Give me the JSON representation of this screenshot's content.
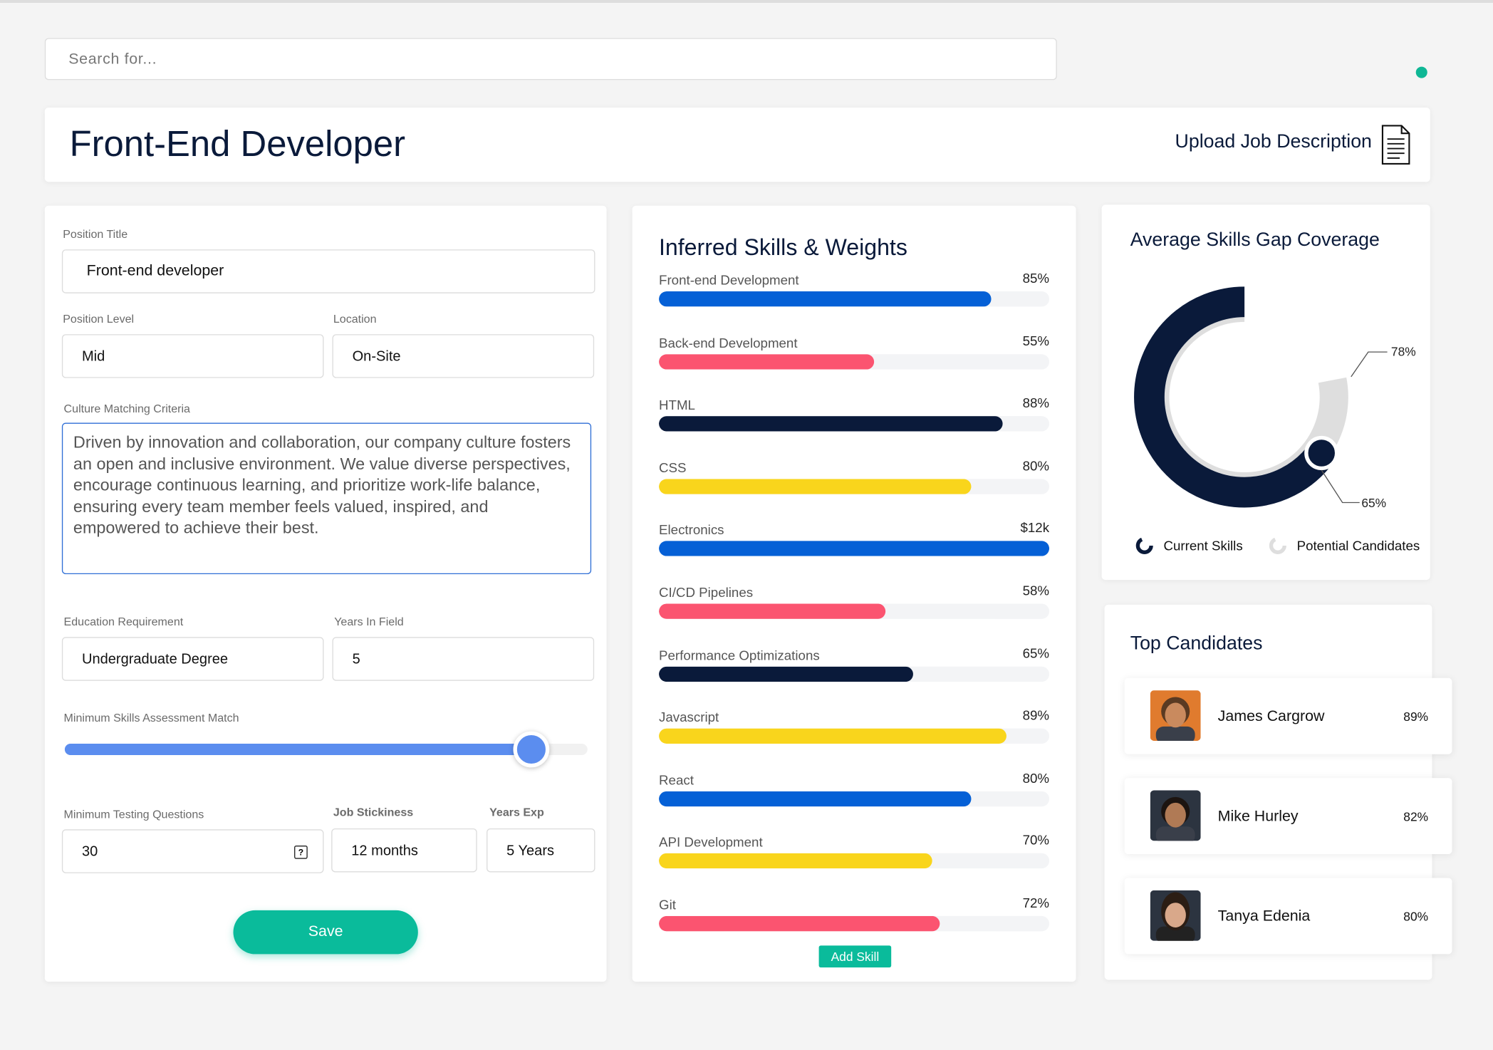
{
  "search": {
    "placeholder": "Search for..."
  },
  "header": {
    "title": "Front-End Developer",
    "upload": "Upload Job Description"
  },
  "form": {
    "fields": [
      {
        "label": "Position Title",
        "value": "Front-end developer"
      },
      {
        "label": "Position Level",
        "value": "Mid"
      },
      {
        "label": "Location",
        "value": "On-Site"
      },
      {
        "label": "Culture Matching Criteria",
        "value": "Driven by innovation and collaboration, our company culture fosters an open and inclusive environment. We value diverse perspectives, encourage continuous learning, and prioritize work-life balance, ensuring every team member feels valued, inspired, and empowered to achieve their best."
      },
      {
        "label": "Education Requirement",
        "value": "Undergraduate Degree"
      },
      {
        "label": "Years In Field",
        "value": "5"
      },
      {
        "label": "Minimum Testing Questions",
        "value": "30"
      },
      {
        "label": "Job Stickiness",
        "value": "12 months"
      },
      {
        "label": "Years Exp",
        "value": "5 Years"
      }
    ],
    "slider_label": "Minimum Skills Assessment Match",
    "save": "Save"
  },
  "skills": {
    "title": "Inferred Skills & Weights",
    "names": [
      "Front-end Development",
      "Back-end Development",
      "HTML",
      "CSS",
      "Electronics",
      "CI/CD Pipelines",
      "Performance Optimizations",
      "Javascript",
      "React",
      "API Development",
      "Git"
    ],
    "values": [
      85,
      55,
      88,
      80,
      12000,
      58,
      65,
      89,
      80,
      70,
      72
    ],
    "value_labels": [
      "85%",
      "55%",
      "88%",
      "80%",
      "$12k",
      "58%",
      "65%",
      "89%",
      "80%",
      "70%",
      "72%"
    ],
    "colors": [
      "#0560d6",
      "#fb5470",
      "#0a1a3a",
      "#f9d51c",
      "#0560d6",
      "#fb5470",
      "#0a1a3a",
      "#f9d51c",
      "#0560d6",
      "#f9d51c",
      "#fb5470"
    ],
    "add": "Add Skill"
  },
  "chart_data": {
    "type": "donut",
    "title": "Average Skills Gap Coverage",
    "series": [
      {
        "name": "Current Skills",
        "color": "#0a1a3a",
        "values": [
          65
        ],
        "value_labels": [
          "65%"
        ]
      },
      {
        "name": "Potential Candidates",
        "color": "#dedede",
        "values": [
          78
        ],
        "value_labels": [
          "78%"
        ]
      }
    ]
  },
  "candidates": {
    "title": "Top Candidates",
    "names": [
      "James Cargrow",
      "Mike Hurley",
      "Tanya Edenia"
    ],
    "values": [
      89,
      82,
      80
    ],
    "value_labels": [
      "89%",
      "82%",
      "80%"
    ]
  }
}
